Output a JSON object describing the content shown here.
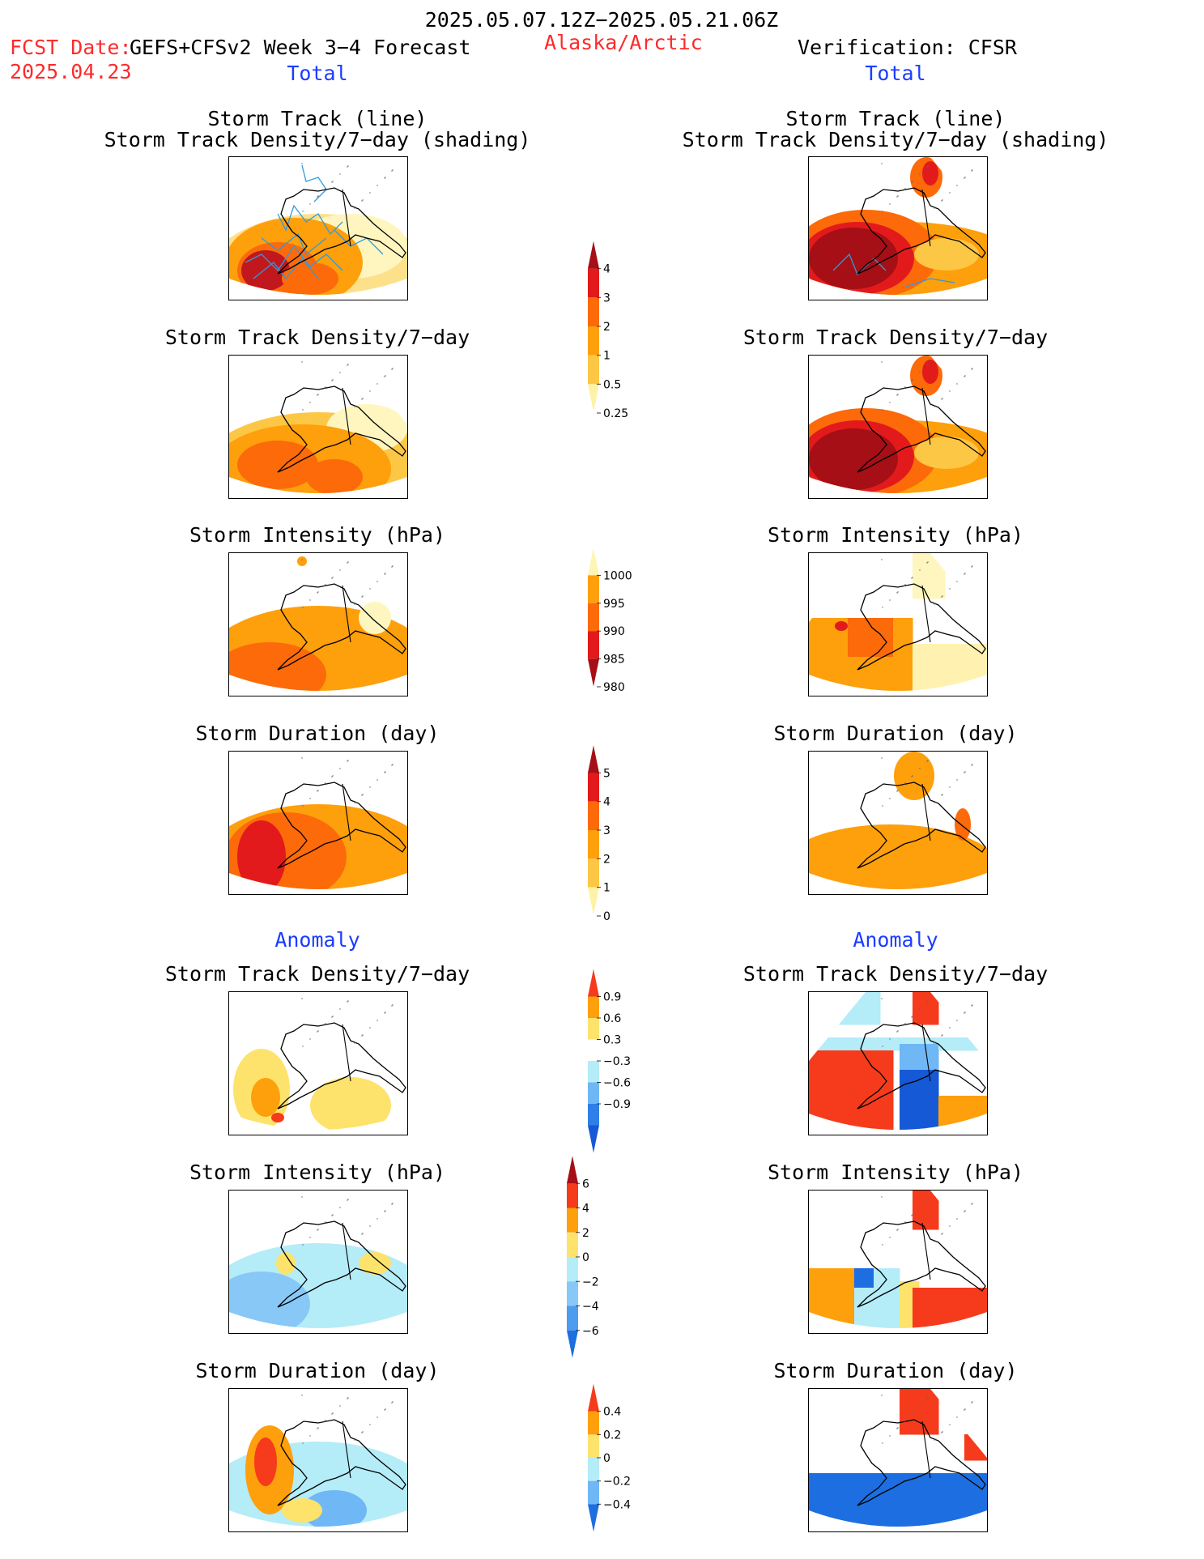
{
  "header": {
    "date_range": "2025.05.07.12Z−2025.05.21.06Z",
    "fcst_label": "FCST Date:",
    "fcst_date": "2025.04.23",
    "forecast_model": "GEFS+CFSv2 Week 3−4 Forecast",
    "region": "Alaska/Arctic",
    "verification": "Verification: CFSR",
    "left_section": "Total",
    "right_section": "Total",
    "anomaly_left": "Anomaly",
    "anomaly_right": "Anomaly"
  },
  "panel_titles": {
    "track_line": "Storm Track (line)",
    "track_density_shading": "Storm Track Density/7−day (shading)",
    "track_density": "Storm Track Density/7−day",
    "intensity": "Storm Intensity (hPa)",
    "duration": "Storm Duration (day)"
  },
  "colorbars": {
    "density": {
      "labels": [
        "4",
        "3",
        "2",
        "1",
        "0.5",
        "0.25"
      ],
      "colors": [
        "#a50f15",
        "#e31a1c",
        "#fc6a0a",
        "#fe9f0c",
        "#fdc746",
        "#fdf2a5"
      ]
    },
    "intensity": {
      "labels": [
        "1000",
        "995",
        "990",
        "985",
        "980"
      ],
      "colors": [
        "#fef5b4",
        "#fe9f0c",
        "#fc6a0a",
        "#e31a1c",
        "#a50f15"
      ]
    },
    "duration": {
      "labels": [
        "5",
        "4",
        "3",
        "2",
        "1",
        "0"
      ],
      "colors": [
        "#a50f15",
        "#e31a1c",
        "#fc6a0a",
        "#fe9f0c",
        "#fdc746",
        "#fdf2a5"
      ]
    },
    "density_anom": {
      "labels": [
        "0.9",
        "0.6",
        "0.3",
        "−0.3",
        "−0.6",
        "−0.9"
      ],
      "colors": [
        "#f53b1c",
        "#fe9f0c",
        "#fde36b",
        "#ffffff",
        "#b4ecf8",
        "#6fb7f5",
        "#2e7fe8",
        "#1659d6"
      ]
    },
    "intensity_anom": {
      "labels": [
        "6",
        "4",
        "2",
        "0",
        "−2",
        "−4",
        "−6"
      ],
      "colors": [
        "#a50f15",
        "#f53b1c",
        "#fe9f0c",
        "#fde36b",
        "#b4ecf8",
        "#88c8f7",
        "#4d9cf0",
        "#1d6ee0"
      ]
    },
    "duration_anom": {
      "labels": [
        "0.4",
        "0.2",
        "0",
        "−0.2",
        "−0.4"
      ],
      "colors": [
        "#f53b1c",
        "#fe9f0c",
        "#fde36b",
        "#b4ecf8",
        "#6fb7f5",
        "#1d6ee0"
      ]
    }
  }
}
